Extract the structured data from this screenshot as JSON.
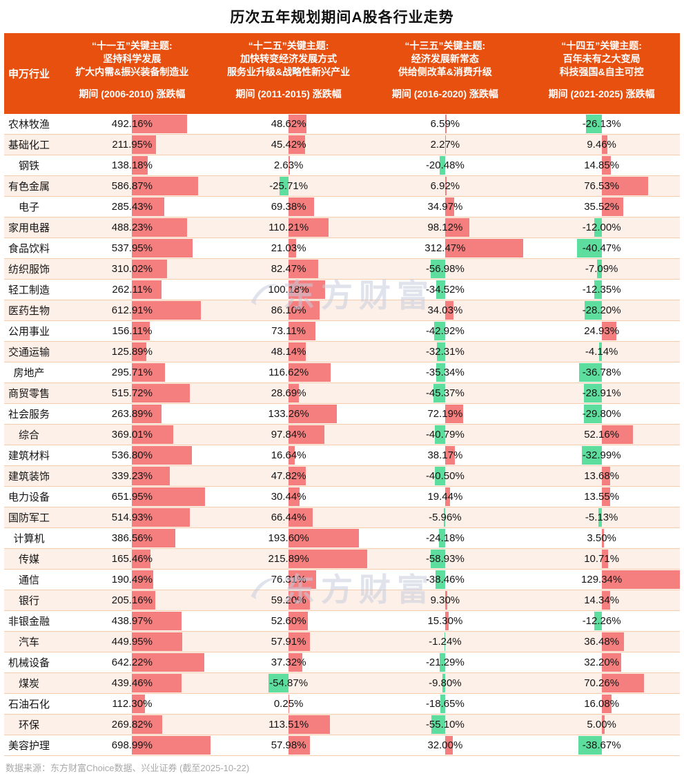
{
  "title": "历次五年规划期间A股各行业走势",
  "footer": "数据来源：东方财富Choice数据、兴业证券 (截至2025-10-22)",
  "watermark": "东方财富",
  "colors": {
    "header_bg": "#E8500F",
    "positive_bar": "#F57F7F",
    "negative_bar": "#5EDE9E",
    "alt_row_bg": "#FDF0E8",
    "row_border": "#F4CBAB"
  },
  "header": {
    "industry_label": "申万行业",
    "columns": [
      {
        "theme_lines": [
          "“十一五”关键主题:",
          "坚持科学发展",
          "扩大内需&振兴装备制造业"
        ]
      },
      {
        "theme_lines": [
          "“十二五”关键主题:",
          "加快转变经济发展方式",
          "服务业升级&战略性新兴产业"
        ]
      },
      {
        "theme_lines": [
          "“十三五”关键主题:",
          "经济发展新常态",
          "供给侧改革&消费升级"
        ]
      },
      {
        "theme_lines": [
          "“十四五”关键主题:",
          "百年未有之大变局",
          "科技强国&自主可控"
        ]
      }
    ]
  },
  "chart_data": {
    "type": "bar",
    "orientation": "horizontal",
    "title": "历次五年规划期间A股各行业走势",
    "value_unit": "%",
    "positive_color": "#F57F7F",
    "negative_color": "#5EDE9E",
    "normalization": "per-series max abs value scales to half column width",
    "categories": [
      "农林牧渔",
      "基础化工",
      "钢铁",
      "有色金属",
      "电子",
      "家用电器",
      "食品饮料",
      "纺织服饰",
      "轻工制造",
      "医药生物",
      "公用事业",
      "交通运输",
      "房地产",
      "商贸零售",
      "社会服务",
      "综合",
      "建筑材料",
      "建筑装饰",
      "电力设备",
      "国防军工",
      "计算机",
      "传媒",
      "通信",
      "银行",
      "非银金融",
      "汽车",
      "机械设备",
      "煤炭",
      "石油石化",
      "环保",
      "美容护理"
    ],
    "series": [
      {
        "name": "期间 (2006-2010) 涨跌幅",
        "values": [
          492.16,
          211.95,
          138.18,
          586.87,
          285.43,
          488.23,
          537.95,
          310.02,
          262.11,
          612.91,
          156.11,
          125.89,
          295.71,
          515.72,
          263.89,
          369.01,
          536.8,
          339.23,
          651.95,
          514.93,
          386.56,
          165.46,
          190.49,
          205.16,
          438.97,
          449.95,
          642.22,
          439.46,
          112.3,
          269.82,
          698.99
        ]
      },
      {
        "name": "期间 (2011-2015) 涨跌幅",
        "values": [
          48.62,
          45.42,
          2.63,
          -25.71,
          69.38,
          110.21,
          21.03,
          82.47,
          100.18,
          86.1,
          73.11,
          48.14,
          116.62,
          28.69,
          133.26,
          97.84,
          16.64,
          47.82,
          30.44,
          66.44,
          193.6,
          215.89,
          76.31,
          59.2,
          52.6,
          57.91,
          37.32,
          -54.87,
          0.25,
          113.51,
          57.98
        ]
      },
      {
        "name": "期间 (2016-2020) 涨跌幅",
        "values": [
          6.59,
          2.27,
          -20.48,
          6.92,
          34.97,
          98.12,
          312.47,
          -56.98,
          -34.52,
          34.03,
          -42.92,
          -32.31,
          -35.34,
          -45.37,
          72.19,
          -40.79,
          38.17,
          -40.5,
          19.44,
          -5.96,
          -24.18,
          -58.93,
          -38.46,
          9.3,
          15.3,
          -1.24,
          -21.29,
          -9.8,
          -18.65,
          -55.1,
          32.0
        ]
      },
      {
        "name": "期间 (2021-2025) 涨跌幅",
        "values": [
          -26.13,
          9.46,
          14.85,
          76.53,
          35.52,
          -12.0,
          -40.47,
          -7.09,
          -12.35,
          -28.2,
          24.93,
          -4.14,
          -36.78,
          -28.91,
          -29.8,
          52.16,
          -32.99,
          13.68,
          13.55,
          -5.13,
          3.5,
          10.71,
          129.34,
          14.34,
          -12.26,
          36.48,
          32.2,
          70.26,
          16.08,
          5.0,
          -38.67
        ]
      }
    ]
  }
}
